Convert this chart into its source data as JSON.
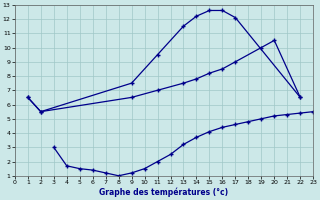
{
  "xlabel": "Graphe des températures (°c)",
  "xlim": [
    0,
    23
  ],
  "ylim": [
    1,
    13
  ],
  "xticks": [
    0,
    1,
    2,
    3,
    4,
    5,
    6,
    7,
    8,
    9,
    10,
    11,
    12,
    13,
    14,
    15,
    16,
    17,
    18,
    19,
    20,
    21,
    22,
    23
  ],
  "yticks": [
    1,
    2,
    3,
    4,
    5,
    6,
    7,
    8,
    9,
    10,
    11,
    12,
    13
  ],
  "bg_color": "#cce8e8",
  "line_color": "#00008b",
  "line1_x": [
    1,
    2,
    9,
    11,
    13,
    14,
    15,
    16,
    17,
    22
  ],
  "line1_y": [
    6.5,
    5.5,
    7.5,
    9.5,
    11.5,
    12.2,
    12.6,
    12.6,
    12.1,
    6.5
  ],
  "line2_x": [
    1,
    2,
    9,
    11,
    13,
    14,
    15,
    16,
    17,
    19,
    20,
    22
  ],
  "line2_y": [
    6.5,
    5.5,
    6.5,
    7.0,
    7.5,
    7.8,
    8.2,
    8.5,
    9.0,
    10.0,
    10.5,
    6.5
  ],
  "line3_x": [
    3,
    4,
    5,
    6,
    7,
    8,
    9,
    10,
    11,
    12,
    13,
    14,
    15,
    16,
    17,
    18,
    19,
    20,
    21,
    22,
    23
  ],
  "line3_y": [
    3.0,
    1.7,
    1.5,
    1.4,
    1.2,
    1.0,
    1.2,
    1.5,
    2.0,
    2.5,
    3.2,
    3.7,
    4.1,
    4.4,
    4.6,
    4.8,
    5.0,
    5.2,
    5.3,
    5.4,
    5.5
  ]
}
